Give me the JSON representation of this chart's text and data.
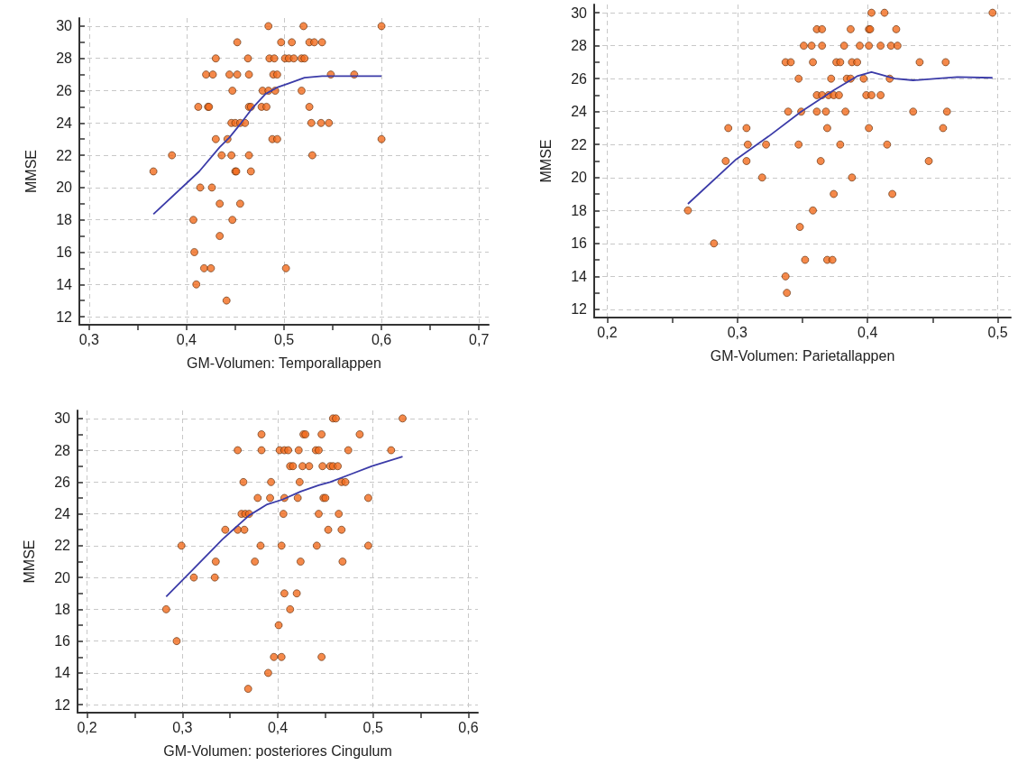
{
  "chart_data": [
    {
      "type": "scatter",
      "xlabel": "GM-Volumen: Temporallappen",
      "ylabel": "MMSE",
      "xlim": [
        0.29,
        0.71
      ],
      "ylim": [
        11.5,
        30.5
      ],
      "xticks": [
        {
          "value": 0.3,
          "label": "0,3"
        },
        {
          "value": 0.35,
          "label": null
        },
        {
          "value": 0.4,
          "label": "0,4"
        },
        {
          "value": 0.45,
          "label": null
        },
        {
          "value": 0.5,
          "label": "0,5"
        },
        {
          "value": 0.55,
          "label": null
        },
        {
          "value": 0.6,
          "label": "0,6"
        },
        {
          "value": 0.65,
          "label": null
        },
        {
          "value": 0.7,
          "label": "0,7"
        }
      ],
      "yticks": [
        12,
        {
          "value": 13,
          "label": null
        },
        14,
        {
          "value": 15,
          "label": null
        },
        16,
        {
          "value": 17,
          "label": null
        },
        18,
        {
          "value": 19,
          "label": null
        },
        20,
        {
          "value": 21,
          "label": null
        },
        22,
        {
          "value": 23,
          "label": null
        },
        24,
        {
          "value": 25,
          "label": null
        },
        26,
        {
          "value": 27,
          "label": null
        },
        28,
        {
          "value": 29,
          "label": null
        },
        30
      ],
      "grid": true,
      "marker": "circle",
      "series": [
        {
          "color": "#f26b1d",
          "x": [
            0.484,
            0.52,
            0.6,
            0.452,
            0.497,
            0.508,
            0.526,
            0.531,
            0.539,
            0.43,
            0.463,
            0.485,
            0.49,
            0.501,
            0.505,
            0.51,
            0.518,
            0.521,
            0.42,
            0.427,
            0.444,
            0.452,
            0.464,
            0.489,
            0.493,
            0.548,
            0.572,
            0.447,
            0.478,
            0.484,
            0.491,
            0.518,
            0.412,
            0.422,
            0.423,
            0.464,
            0.466,
            0.477,
            0.482,
            0.526,
            0.446,
            0.45,
            0.455,
            0.46,
            0.528,
            0.538,
            0.546,
            0.43,
            0.442,
            0.488,
            0.493,
            0.6,
            0.385,
            0.436,
            0.446,
            0.464,
            0.529,
            0.366,
            0.45,
            0.451,
            0.466,
            0.414,
            0.426,
            0.434,
            0.455,
            0.407,
            0.447,
            0.434,
            0.408,
            0.418,
            0.425,
            0.502,
            0.41,
            0.441
          ],
          "values": [
            30,
            30,
            30,
            29,
            29,
            29,
            29,
            29,
            29,
            28,
            28,
            28,
            28,
            28,
            28,
            28,
            28,
            28,
            27,
            27,
            27,
            27,
            27,
            27,
            27,
            27,
            27,
            26,
            26,
            26,
            26,
            26,
            25,
            25,
            25,
            25,
            25,
            25,
            25,
            25,
            24,
            24,
            24,
            24,
            24,
            24,
            24,
            23,
            23,
            23,
            23,
            23,
            22,
            22,
            22,
            22,
            22,
            21,
            21,
            21,
            21,
            20,
            20,
            19,
            19,
            18,
            18,
            17,
            16,
            15,
            15,
            15,
            14,
            13
          ]
        },
        {
          "type": "line",
          "color": "#3b3ba8",
          "marker": "none",
          "x": [
            0.366,
            0.413,
            0.434,
            0.444,
            0.456,
            0.468,
            0.481,
            0.493,
            0.505,
            0.521,
            0.539,
            0.6
          ],
          "values": [
            18.35,
            21.0,
            22.5,
            23.1,
            24.0,
            24.95,
            25.8,
            26.2,
            26.45,
            26.8,
            26.9,
            26.9
          ]
        }
      ]
    },
    {
      "type": "scatter",
      "xlabel": "GM-Volumen: Parietallappen",
      "ylabel": "MMSE",
      "xlim": [
        0.19,
        0.51
      ],
      "ylim": [
        11.5,
        30.5
      ],
      "xticks": [
        {
          "value": 0.2,
          "label": "0,2"
        },
        {
          "value": 0.25,
          "label": null
        },
        {
          "value": 0.3,
          "label": "0,3"
        },
        {
          "value": 0.35,
          "label": null
        },
        {
          "value": 0.4,
          "label": "0,4"
        },
        {
          "value": 0.45,
          "label": null
        },
        {
          "value": 0.5,
          "label": "0,5"
        }
      ],
      "yticks": [
        12,
        {
          "value": 13,
          "label": null
        },
        14,
        {
          "value": 15,
          "label": null
        },
        16,
        {
          "value": 17,
          "label": null
        },
        18,
        {
          "value": 19,
          "label": null
        },
        20,
        {
          "value": 21,
          "label": null
        },
        22,
        {
          "value": 23,
          "label": null
        },
        24,
        {
          "value": 25,
          "label": null
        },
        26,
        {
          "value": 27,
          "label": null
        },
        28,
        {
          "value": 29,
          "label": null
        },
        30
      ],
      "grid": true,
      "marker": "circle",
      "series": [
        {
          "color": "#f26b1d",
          "x": [
            0.403,
            0.413,
            0.496,
            0.361,
            0.365,
            0.387,
            0.401,
            0.402,
            0.422,
            0.351,
            0.357,
            0.365,
            0.382,
            0.394,
            0.401,
            0.41,
            0.418,
            0.423,
            0.337,
            0.341,
            0.358,
            0.376,
            0.379,
            0.388,
            0.392,
            0.44,
            0.46,
            0.347,
            0.372,
            0.384,
            0.387,
            0.397,
            0.417,
            0.361,
            0.365,
            0.37,
            0.374,
            0.378,
            0.399,
            0.403,
            0.41,
            0.339,
            0.349,
            0.361,
            0.368,
            0.383,
            0.435,
            0.461,
            0.293,
            0.307,
            0.369,
            0.401,
            0.458,
            0.308,
            0.322,
            0.347,
            0.379,
            0.415,
            0.291,
            0.307,
            0.364,
            0.447,
            0.319,
            0.388,
            0.374,
            0.419,
            0.262,
            0.358,
            0.348,
            0.282,
            0.352,
            0.369,
            0.373,
            0.337,
            0.338
          ],
          "values": [
            30,
            30,
            30,
            29,
            29,
            29,
            29,
            29,
            29,
            28,
            28,
            28,
            28,
            28,
            28,
            28,
            28,
            28,
            27,
            27,
            27,
            27,
            27,
            27,
            27,
            27,
            27,
            26,
            26,
            26,
            26,
            26,
            26,
            25,
            25,
            25,
            25,
            25,
            25,
            25,
            25,
            24,
            24,
            24,
            24,
            24,
            24,
            24,
            23,
            23,
            23,
            23,
            23,
            22,
            22,
            22,
            22,
            22,
            21,
            21,
            21,
            21,
            20,
            20,
            19,
            19,
            18,
            18,
            17,
            16,
            15,
            15,
            15,
            14,
            13
          ]
        },
        {
          "type": "line",
          "color": "#3b3ba8",
          "marker": "none",
          "x": [
            0.262,
            0.299,
            0.324,
            0.349,
            0.374,
            0.392,
            0.403,
            0.41,
            0.421,
            0.435,
            0.453,
            0.469,
            0.496
          ],
          "values": [
            18.4,
            21.1,
            22.5,
            24.0,
            25.3,
            26.15,
            26.4,
            26.25,
            26.0,
            25.9,
            26.0,
            26.1,
            26.05
          ]
        }
      ]
    },
    {
      "type": "scatter",
      "xlabel": "GM-Volumen: posteriores Cingulum",
      "ylabel": "MMSE",
      "xlim": [
        0.19,
        0.61
      ],
      "ylim": [
        11.5,
        30.5
      ],
      "xticks": [
        {
          "value": 0.2,
          "label": "0,2"
        },
        {
          "value": 0.25,
          "label": null
        },
        {
          "value": 0.3,
          "label": "0,3"
        },
        {
          "value": 0.35,
          "label": null
        },
        {
          "value": 0.4,
          "label": "0,4"
        },
        {
          "value": 0.45,
          "label": null
        },
        {
          "value": 0.5,
          "label": "0,5"
        },
        {
          "value": 0.55,
          "label": null
        },
        {
          "value": 0.6,
          "label": "0,6"
        }
      ],
      "yticks": [
        12,
        {
          "value": 13,
          "label": null
        },
        14,
        {
          "value": 15,
          "label": null
        },
        16,
        {
          "value": 17,
          "label": null
        },
        18,
        {
          "value": 19,
          "label": null
        },
        20,
        {
          "value": 21,
          "label": null
        },
        22,
        {
          "value": 23,
          "label": null
        },
        24,
        {
          "value": 25,
          "label": null
        },
        26,
        {
          "value": 27,
          "label": null
        },
        28,
        {
          "value": 29,
          "label": null
        },
        30
      ],
      "grid": true,
      "marker": "circle",
      "series": [
        {
          "color": "#f26b1d",
          "x": [
            0.458,
            0.461,
            0.531,
            0.383,
            0.427,
            0.429,
            0.446,
            0.486,
            0.358,
            0.383,
            0.402,
            0.407,
            0.411,
            0.422,
            0.44,
            0.443,
            0.474,
            0.519,
            0.413,
            0.416,
            0.426,
            0.433,
            0.447,
            0.455,
            0.458,
            0.463,
            0.364,
            0.393,
            0.423,
            0.467,
            0.471,
            0.379,
            0.392,
            0.407,
            0.421,
            0.448,
            0.45,
            0.495,
            0.362,
            0.366,
            0.37,
            0.406,
            0.443,
            0.464,
            0.345,
            0.358,
            0.365,
            0.453,
            0.467,
            0.299,
            0.382,
            0.404,
            0.441,
            0.495,
            0.335,
            0.376,
            0.424,
            0.468,
            0.312,
            0.334,
            0.407,
            0.42,
            0.283,
            0.413,
            0.401,
            0.294,
            0.396,
            0.404,
            0.446,
            0.39,
            0.369
          ],
          "values": [
            30,
            30,
            30,
            29,
            29,
            29,
            29,
            29,
            28,
            28,
            28,
            28,
            28,
            28,
            28,
            28,
            28,
            28,
            27,
            27,
            27,
            27,
            27,
            27,
            27,
            27,
            26,
            26,
            26,
            26,
            26,
            25,
            25,
            25,
            25,
            25,
            25,
            25,
            24,
            24,
            24,
            24,
            24,
            24,
            23,
            23,
            23,
            23,
            23,
            22,
            22,
            22,
            22,
            22,
            21,
            21,
            21,
            21,
            20,
            20,
            19,
            19,
            18,
            18,
            17,
            16,
            15,
            15,
            15,
            14,
            13
          ]
        },
        {
          "type": "line",
          "color": "#3b3ba8",
          "marker": "none",
          "x": [
            0.283,
            0.311,
            0.342,
            0.37,
            0.389,
            0.405,
            0.424,
            0.443,
            0.455,
            0.477,
            0.499,
            0.531
          ],
          "values": [
            18.8,
            20.5,
            22.4,
            23.9,
            24.6,
            24.9,
            25.4,
            25.8,
            26.0,
            26.5,
            27.0,
            27.6
          ]
        }
      ]
    }
  ]
}
